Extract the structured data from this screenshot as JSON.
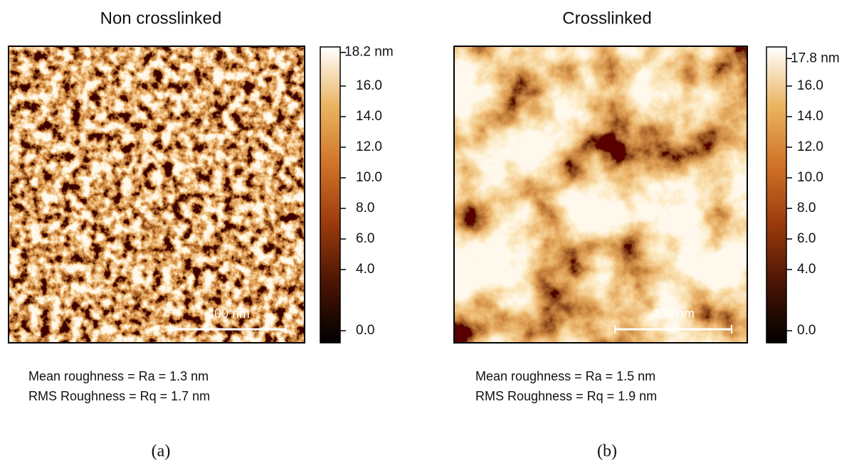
{
  "panels": [
    {
      "title": "Non crosslinked",
      "colorbar_ticks": [
        "18.2 nm",
        "16.0",
        "14.0",
        "12.0",
        "10.0",
        "8.0",
        "6.0",
        "4.0",
        "0.0"
      ],
      "scale_bar": "400 nm",
      "roughness": [
        "Mean roughness = Ra = 1.3 nm",
        "RMS Roughness = Rq = 1.7 nm"
      ],
      "caption": "(a)"
    },
    {
      "title": "Crosslinked",
      "colorbar_ticks": [
        "17.8 nm",
        "16.0",
        "14.0",
        "12.0",
        "10.0",
        "8.0",
        "6.0",
        "4.0",
        "0.0"
      ],
      "scale_bar": "400 nm",
      "roughness": [
        "Mean roughness = Ra = 1.5 nm",
        "RMS Roughness = Rq = 1.9 nm"
      ],
      "caption": "(b)"
    }
  ]
}
